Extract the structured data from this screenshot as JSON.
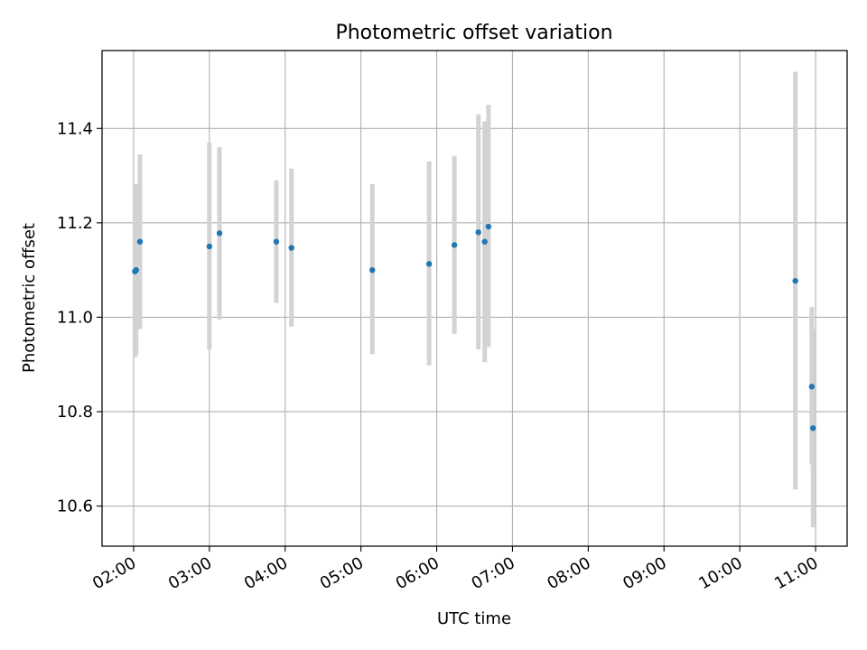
{
  "chart_data": {
    "type": "scatter",
    "title": "Photometric offset variation",
    "xlabel": "UTC time",
    "ylabel": "Photometric offset",
    "grid": true,
    "xlim": [
      "01:35",
      "11:25"
    ],
    "ylim": [
      10.515,
      11.565
    ],
    "x_ticks": [
      "02:00",
      "03:00",
      "04:00",
      "05:00",
      "06:00",
      "07:00",
      "08:00",
      "09:00",
      "10:00",
      "11:00"
    ],
    "y_ticks": [
      "10.6",
      "10.8",
      "11.0",
      "11.2",
      "11.4"
    ],
    "colors": {
      "points": "#1f77b4",
      "errorbars": "#d3d3d3",
      "grid": "#b0b0b0"
    },
    "series": [
      {
        "points": [
          {
            "x": "02:01",
            "y": 11.097,
            "ylo": 10.915,
            "yhi": 11.28
          },
          {
            "x": "02:02",
            "y": 11.1,
            "ylo": 10.92,
            "yhi": 11.282
          },
          {
            "x": "02:05",
            "y": 11.16,
            "ylo": 10.975,
            "yhi": 11.345
          },
          {
            "x": "03:00",
            "y": 11.15,
            "ylo": 10.932,
            "yhi": 11.37
          },
          {
            "x": "03:08",
            "y": 11.178,
            "ylo": 10.995,
            "yhi": 11.36
          },
          {
            "x": "03:53",
            "y": 11.16,
            "ylo": 11.03,
            "yhi": 11.29
          },
          {
            "x": "04:05",
            "y": 11.147,
            "ylo": 10.98,
            "yhi": 11.315
          },
          {
            "x": "05:09",
            "y": 11.1,
            "ylo": 10.922,
            "yhi": 11.282
          },
          {
            "x": "05:54",
            "y": 11.113,
            "ylo": 10.898,
            "yhi": 11.33
          },
          {
            "x": "06:14",
            "y": 11.153,
            "ylo": 10.965,
            "yhi": 11.342
          },
          {
            "x": "06:33",
            "y": 11.18,
            "ylo": 10.932,
            "yhi": 11.43
          },
          {
            "x": "06:38",
            "y": 11.16,
            "ylo": 10.905,
            "yhi": 11.415
          },
          {
            "x": "06:41",
            "y": 11.192,
            "ylo": 10.937,
            "yhi": 11.45
          },
          {
            "x": "10:44",
            "y": 11.077,
            "ylo": 10.635,
            "yhi": 11.52
          },
          {
            "x": "10:57",
            "y": 10.853,
            "ylo": 10.688,
            "yhi": 11.022
          },
          {
            "x": "10:58",
            "y": 10.765,
            "ylo": 10.555,
            "yhi": 10.975
          }
        ]
      }
    ]
  }
}
